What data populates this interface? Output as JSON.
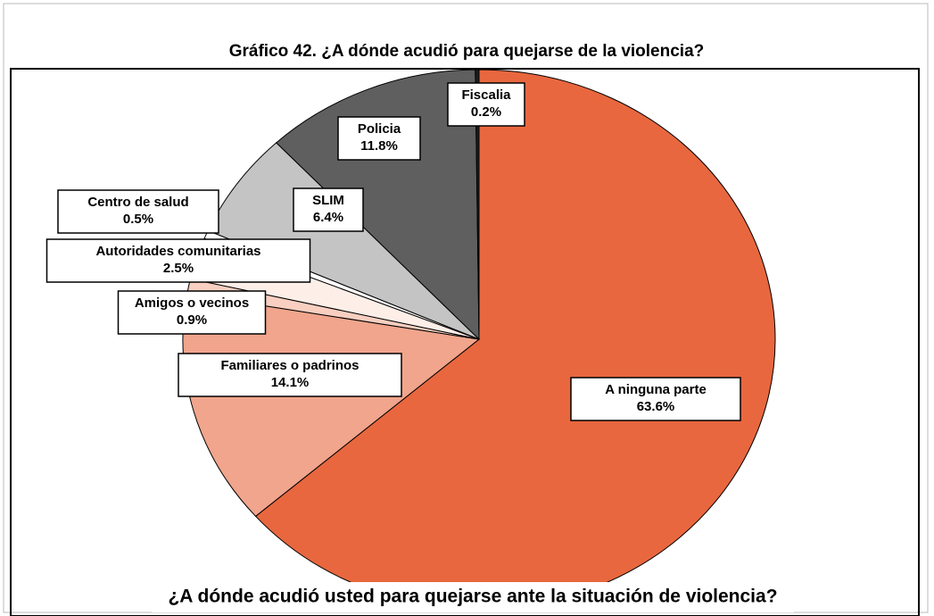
{
  "chart_data": {
    "type": "pie",
    "title": "Gráfico 42. ¿A dónde acudió para quejarse de la violencia?",
    "xlabel": "¿A dónde acudió usted para quejarse ante la situación de violencia?",
    "categories": [
      "A ninguna parte",
      "Familiares o padrinos",
      "Amigos o vecinos",
      "Autoridades comunitarias",
      "Centro de salud",
      "SLIM",
      "Policia",
      "Fiscalia"
    ],
    "values": [
      63.6,
      14.1,
      0.9,
      2.5,
      0.5,
      6.4,
      11.8,
      0.2
    ],
    "value_labels": [
      "63.6%",
      "14.1%",
      "0.9%",
      "2.5%",
      "0.5%",
      "6.4%",
      "11.8%",
      "0.2%"
    ],
    "colors": [
      "#e8673f",
      "#f0a58c",
      "#f8cfc0",
      "#fdeee8",
      "#ffffff",
      "#c4c4c4",
      "#5f5f5f",
      "#1e1e1e"
    ]
  }
}
